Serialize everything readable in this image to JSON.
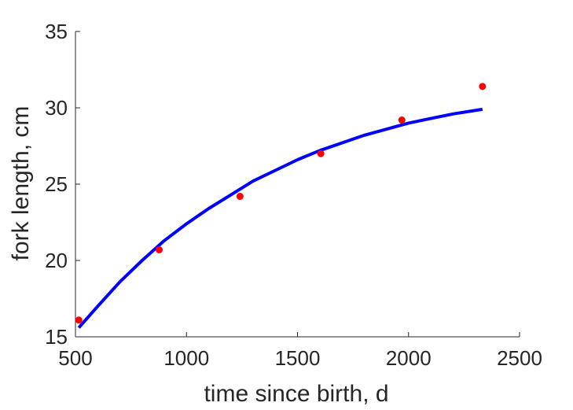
{
  "chart_data": {
    "type": "scatter",
    "xlabel": "time since birth, d",
    "ylabel": "fork length, cm",
    "xlim": [
      500,
      2500
    ],
    "ylim": [
      15,
      35
    ],
    "xticks": [
      500,
      1000,
      1500,
      2000,
      2500
    ],
    "yticks": [
      15,
      20,
      25,
      30,
      35
    ],
    "grid": false,
    "box": false,
    "series": [
      {
        "kind": "points",
        "color": "#ff0000",
        "x": [
          515,
          877,
          1241,
          1605,
          1970,
          2333
        ],
        "y": [
          16.1,
          20.7,
          24.2,
          27.0,
          29.2,
          31.4
        ]
      },
      {
        "kind": "line",
        "color": "#0000ff",
        "x": [
          515,
          600,
          700,
          800,
          900,
          1000,
          1100,
          1200,
          1300,
          1400,
          1500,
          1600,
          1700,
          1800,
          1900,
          2000,
          2100,
          2200,
          2333
        ],
        "y": [
          15.6,
          17.0,
          18.6,
          20.0,
          21.3,
          22.4,
          23.4,
          24.3,
          25.2,
          25.9,
          26.6,
          27.2,
          27.7,
          28.2,
          28.6,
          29.0,
          29.3,
          29.6,
          29.9
        ]
      }
    ]
  }
}
